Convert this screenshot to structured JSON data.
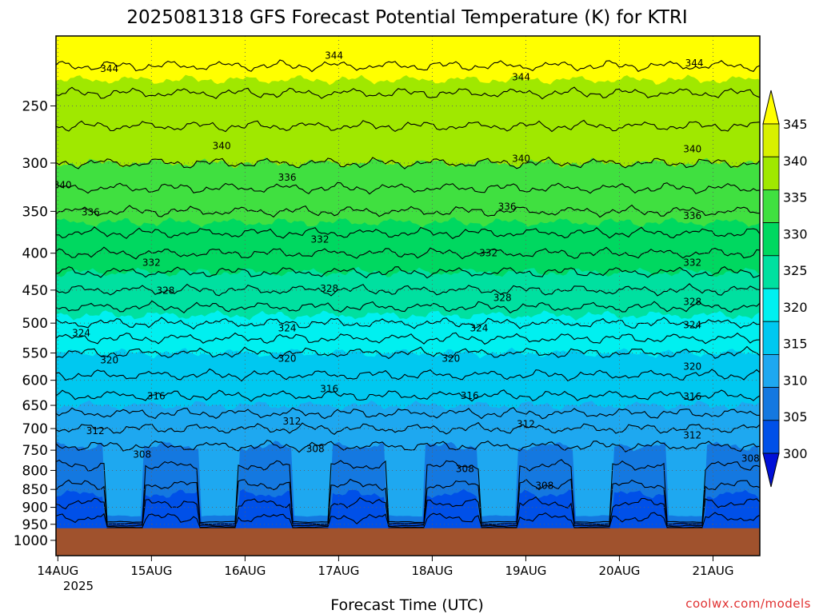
{
  "chart_data": {
    "type": "contour",
    "title": "2025081318 GFS Forecast Potential Temperature (K) for KTRI",
    "xlabel": "Forecast Time (UTC)",
    "ylabel": "",
    "x_start_day": "14AUG",
    "x_year_label": "2025",
    "x_ticks": [
      {
        "day": 0,
        "label": "14AUG"
      },
      {
        "day": 1,
        "label": "15AUG"
      },
      {
        "day": 2,
        "label": "16AUG"
      },
      {
        "day": 3,
        "label": "17AUG"
      },
      {
        "day": 4,
        "label": "18AUG"
      },
      {
        "day": 5,
        "label": "19AUG"
      },
      {
        "day": 6,
        "label": "20AUG"
      },
      {
        "day": 7,
        "label": "21AUG"
      }
    ],
    "xlim_days": [
      -0.02,
      7.5
    ],
    "y_axis": "pressure (hPa, log scale, inverted)",
    "ylim_hpa": [
      200,
      1050
    ],
    "y_ticks": [
      250,
      300,
      350,
      400,
      450,
      500,
      550,
      600,
      650,
      700,
      750,
      800,
      850,
      900,
      950,
      1000
    ],
    "surface_hpa": 962,
    "surface_color": "#a0522d",
    "colorbar": {
      "levels": [
        300,
        305,
        310,
        315,
        320,
        325,
        330,
        335,
        340,
        345
      ],
      "labels": [
        "300",
        "305",
        "310",
        "315",
        "320",
        "325",
        "330",
        "335",
        "340",
        "345"
      ],
      "colors": [
        "#0010d8",
        "#0050e8",
        "#1478e0",
        "#1ea8f0",
        "#00c8f0",
        "#00f0f0",
        "#00e0a0",
        "#00d860",
        "#40e040",
        "#a0e800",
        "#d8f000",
        "#ffff00"
      ],
      "extend": "both"
    },
    "profile": [
      {
        "p": 200,
        "theta": 348
      },
      {
        "p": 250,
        "theta": 343
      },
      {
        "p": 300,
        "theta": 340
      },
      {
        "p": 350,
        "theta": 336
      },
      {
        "p": 400,
        "theta": 332
      },
      {
        "p": 450,
        "theta": 328
      },
      {
        "p": 500,
        "theta": 324
      },
      {
        "p": 550,
        "theta": 320
      },
      {
        "p": 600,
        "theta": 317.5
      },
      {
        "p": 650,
        "theta": 315
      },
      {
        "p": 700,
        "theta": 312
      },
      {
        "p": 750,
        "theta": 309.5
      },
      {
        "p": 800,
        "theta": 307.5
      },
      {
        "p": 850,
        "theta": 305.5
      },
      {
        "p": 900,
        "theta": 303.5
      },
      {
        "p": 950,
        "theta": 301
      },
      {
        "p": 1000,
        "theta": 300
      }
    ],
    "contour_interval": 2,
    "contour_labels": [
      {
        "theta": 344,
        "day": 0.55,
        "p": 222
      },
      {
        "theta": 344,
        "day": 2.95,
        "p": 213
      },
      {
        "theta": 344,
        "day": 4.95,
        "p": 228
      },
      {
        "theta": 344,
        "day": 6.8,
        "p": 218
      },
      {
        "theta": 340,
        "day": 1.75,
        "p": 284
      },
      {
        "theta": 340,
        "day": 0.05,
        "p": 322
      },
      {
        "theta": 340,
        "day": 4.95,
        "p": 296
      },
      {
        "theta": 340,
        "day": 6.78,
        "p": 287
      },
      {
        "theta": 336,
        "day": 2.45,
        "p": 314
      },
      {
        "theta": 336,
        "day": 0.35,
        "p": 351
      },
      {
        "theta": 336,
        "day": 4.8,
        "p": 345
      },
      {
        "theta": 336,
        "day": 6.78,
        "p": 355
      },
      {
        "theta": 332,
        "day": 2.8,
        "p": 383
      },
      {
        "theta": 332,
        "day": 1.0,
        "p": 412
      },
      {
        "theta": 332,
        "day": 4.6,
        "p": 400
      },
      {
        "theta": 332,
        "day": 6.78,
        "p": 412
      },
      {
        "theta": 328,
        "day": 1.15,
        "p": 451
      },
      {
        "theta": 328,
        "day": 2.9,
        "p": 448
      },
      {
        "theta": 328,
        "day": 4.75,
        "p": 461
      },
      {
        "theta": 328,
        "day": 6.78,
        "p": 467
      },
      {
        "theta": 324,
        "day": 0.25,
        "p": 516
      },
      {
        "theta": 324,
        "day": 2.45,
        "p": 508
      },
      {
        "theta": 324,
        "day": 4.5,
        "p": 508
      },
      {
        "theta": 324,
        "day": 6.78,
        "p": 503
      },
      {
        "theta": 320,
        "day": 0.55,
        "p": 563
      },
      {
        "theta": 320,
        "day": 2.45,
        "p": 560
      },
      {
        "theta": 320,
        "day": 4.2,
        "p": 560
      },
      {
        "theta": 320,
        "day": 6.78,
        "p": 574
      },
      {
        "theta": 316,
        "day": 1.05,
        "p": 631
      },
      {
        "theta": 316,
        "day": 2.9,
        "p": 617
      },
      {
        "theta": 316,
        "day": 4.4,
        "p": 630
      },
      {
        "theta": 316,
        "day": 6.78,
        "p": 632
      },
      {
        "theta": 312,
        "day": 0.4,
        "p": 705
      },
      {
        "theta": 312,
        "day": 2.5,
        "p": 684
      },
      {
        "theta": 312,
        "day": 5.0,
        "p": 690
      },
      {
        "theta": 312,
        "day": 6.78,
        "p": 715
      },
      {
        "theta": 308,
        "day": 0.9,
        "p": 760
      },
      {
        "theta": 308,
        "day": 2.75,
        "p": 747
      },
      {
        "theta": 308,
        "day": 4.35,
        "p": 796
      },
      {
        "theta": 308,
        "day": 5.2,
        "p": 840
      },
      {
        "theta": 308,
        "day": 7.4,
        "p": 770
      }
    ]
  }
}
